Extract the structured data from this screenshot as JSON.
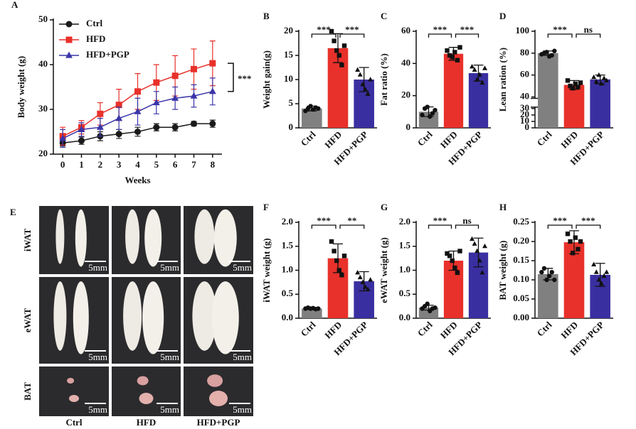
{
  "chart_data": [
    {
      "type": "line",
      "panel": "A",
      "xlabel": "Weeks",
      "ylabel": "Body weight (g)",
      "x": [
        0,
        1,
        2,
        3,
        4,
        5,
        6,
        7,
        8
      ],
      "xlim": [
        -0.5,
        8.5
      ],
      "xticks": [
        0,
        1,
        2,
        3,
        4,
        5,
        6,
        7,
        8
      ],
      "ylim": [
        20,
        50
      ],
      "yticks": [
        20,
        30,
        40,
        50
      ],
      "series": [
        {
          "name": "Ctrl",
          "color": "#1a1a1a",
          "marker": "circle",
          "values": [
            22.5,
            23,
            24,
            24.5,
            25,
            26,
            26,
            26.8,
            26.8
          ],
          "errors": [
            0.7,
            0.8,
            1,
            1,
            1,
            0.8,
            0.8,
            0.5,
            0.8
          ]
        },
        {
          "name": "HFD",
          "color": "#e8312a",
          "marker": "square",
          "values": [
            24,
            26,
            29,
            31,
            34,
            36,
            37.5,
            39,
            40.3
          ],
          "errors": [
            2,
            1.5,
            2.5,
            3.5,
            4,
            4,
            4.5,
            4.5,
            5
          ]
        },
        {
          "name": "HFD+PGP",
          "color": "#3a35a8",
          "marker": "triangle",
          "values": [
            23.5,
            25.5,
            26,
            28,
            29.5,
            31.5,
            32.5,
            33,
            34
          ],
          "errors": [
            2,
            1.5,
            2,
            2.5,
            3,
            2.5,
            2.5,
            2.5,
            3
          ]
        }
      ],
      "annotation": "***"
    },
    {
      "type": "bar",
      "panel": "B",
      "ylabel": "Weight gain(g)",
      "categories": [
        "Ctrl",
        "HFD",
        "HFD+PGP"
      ],
      "colors": [
        "#808080",
        "#e8312a",
        "#3a2fa0"
      ],
      "point_markers": [
        "circle",
        "square",
        "triangle"
      ],
      "values": [
        4,
        16.5,
        10
      ],
      "errors": [
        0.5,
        3,
        2.5
      ],
      "points": [
        [
          3.5,
          4,
          4.5,
          3.8,
          4.2,
          4
        ],
        [
          20,
          18,
          16,
          15,
          13,
          17
        ],
        [
          12,
          11,
          9,
          8,
          7,
          10
        ]
      ],
      "ylim": [
        0,
        20
      ],
      "yticks": [
        0,
        5,
        10,
        15,
        20
      ],
      "annotations": [
        "***",
        "***"
      ]
    },
    {
      "type": "bar",
      "panel": "C",
      "ylabel": "Fat ratio (%)",
      "categories": [
        "Ctrl",
        "HFD",
        "HFD+PGP"
      ],
      "colors": [
        "#808080",
        "#e8312a",
        "#3a2fa0"
      ],
      "point_markers": [
        "circle",
        "square",
        "triangle"
      ],
      "values": [
        10,
        46,
        34
      ],
      "errors": [
        3,
        4,
        5
      ],
      "points": [
        [
          8,
          12,
          13,
          7,
          9,
          11
        ],
        [
          48,
          45,
          44,
          47,
          42,
          50
        ],
        [
          38,
          36,
          30,
          33,
          28,
          37
        ]
      ],
      "ylim": [
        0,
        60
      ],
      "yticks": [
        0,
        20,
        40,
        60
      ],
      "annotations": [
        "***",
        "***"
      ]
    },
    {
      "type": "bar",
      "panel": "D",
      "ylabel": "Lean ration (%)",
      "categories": [
        "Ctrl",
        "HFD",
        "HFD+PGP"
      ],
      "colors": [
        "#808080",
        "#e8312a",
        "#3a2fa0"
      ],
      "point_markers": [
        "circle",
        "square",
        "triangle"
      ],
      "values": [
        80,
        51,
        56
      ],
      "errors": [
        2,
        4,
        4
      ],
      "points": [
        [
          79,
          80,
          81,
          77,
          78,
          82
        ],
        [
          55,
          50,
          48,
          52,
          49,
          53
        ],
        [
          58,
          54,
          60,
          52,
          57,
          55
        ]
      ],
      "ylim": [
        0,
        100
      ],
      "yticks": [
        0,
        10,
        20,
        30,
        40,
        60,
        80,
        100
      ],
      "axis_break": [
        30,
        40
      ],
      "annotations": [
        "***",
        "ns"
      ]
    },
    {
      "type": "bar",
      "panel": "F",
      "ylabel": "iWAT weight (g)",
      "categories": [
        "Ctrl",
        "HFD",
        "HFD+PGP"
      ],
      "colors": [
        "#808080",
        "#e8312a",
        "#3a2fa0"
      ],
      "point_markers": [
        "circle",
        "square",
        "triangle"
      ],
      "values": [
        0.2,
        1.25,
        0.77
      ],
      "errors": [
        0.02,
        0.3,
        0.2
      ],
      "points": [
        [
          0.2,
          0.22,
          0.2,
          0.21,
          0.19,
          0.2
        ],
        [
          1.6,
          1.4,
          1.2,
          1.0,
          0.9,
          1.3
        ],
        [
          0.95,
          0.85,
          0.75,
          0.65,
          0.6,
          0.8
        ]
      ],
      "ylim": [
        0,
        2
      ],
      "yticks": [
        {
          "value": 0,
          "label": "0.0"
        },
        0.5,
        {
          "value": 1,
          "label": "1.0"
        },
        1.5,
        {
          "value": 2,
          "label": "2.0"
        }
      ],
      "annotations": [
        "***",
        "**"
      ]
    },
    {
      "type": "bar",
      "panel": "G",
      "ylabel": "eWAT weight (g)",
      "categories": [
        "Ctrl",
        "HFD",
        "HFD+PGP"
      ],
      "colors": [
        "#808080",
        "#e8312a",
        "#3a2fa0"
      ],
      "point_markers": [
        "circle",
        "square",
        "triangle"
      ],
      "values": [
        0.22,
        1.2,
        1.37
      ],
      "errors": [
        0.05,
        0.2,
        0.3
      ],
      "points": [
        [
          0.2,
          0.25,
          0.3,
          0.15,
          0.2,
          0.22
        ],
        [
          1.35,
          1.3,
          1.2,
          1.05,
          0.95,
          1.4
        ],
        [
          1.65,
          1.55,
          1.4,
          1.2,
          0.95,
          1.5
        ]
      ],
      "ylim": [
        0,
        2
      ],
      "yticks": [
        {
          "value": 0,
          "label": "0.0"
        },
        0.5,
        {
          "value": 1,
          "label": "1.0"
        },
        1.5,
        {
          "value": 2,
          "label": "2.0"
        }
      ],
      "annotations": [
        "***",
        "ns"
      ]
    },
    {
      "type": "bar",
      "panel": "H",
      "ylabel": "BAT weight (g)",
      "categories": [
        "Ctrl",
        "HFD",
        "HFD+PGP"
      ],
      "colors": [
        "#808080",
        "#e8312a",
        "#3a2fa0"
      ],
      "point_markers": [
        "circle",
        "square",
        "triangle"
      ],
      "values": [
        0.115,
        0.198,
        0.113
      ],
      "errors": [
        0.015,
        0.03,
        0.03
      ],
      "points": [
        [
          0.12,
          0.13,
          0.1,
          0.11,
          0.12,
          0.1
        ],
        [
          0.22,
          0.2,
          0.17,
          0.21,
          0.18,
          0.2
        ],
        [
          0.14,
          0.12,
          0.1,
          0.09,
          0.11,
          0.12
        ]
      ],
      "ylim": [
        0,
        0.25
      ],
      "yticks": [
        {
          "value": 0,
          "label": "0.00"
        },
        0.05,
        {
          "value": 0.1,
          "label": "0.10"
        },
        0.15,
        {
          "value": 0.2,
          "label": "0.20"
        },
        0.25
      ],
      "annotations": [
        "***",
        "***"
      ]
    }
  ],
  "photo_panel": {
    "label": "E",
    "rows": [
      "iWAT",
      "eWAT",
      "BAT"
    ],
    "columns": [
      "Ctrl",
      "HFD",
      "HFD+PGP"
    ],
    "scale_bar": "5mm"
  }
}
